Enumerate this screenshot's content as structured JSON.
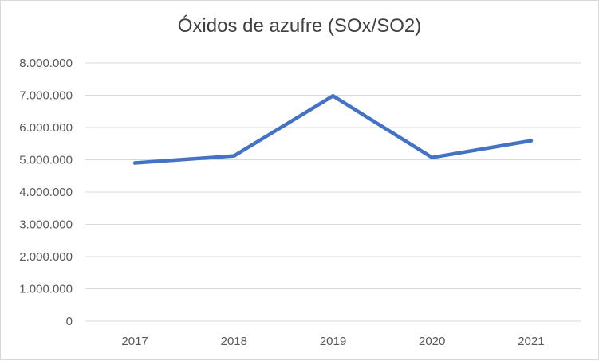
{
  "chart_data": {
    "type": "line",
    "title": "Óxidos de azufre (SOx/SO2)",
    "categories": [
      "2017",
      "2018",
      "2019",
      "2020",
      "2021"
    ],
    "series": [
      {
        "values": [
          4900000,
          5120000,
          6980000,
          5070000,
          5590000
        ]
      }
    ],
    "ylim": [
      0,
      8000000
    ],
    "yticks": [
      0,
      1000000,
      2000000,
      3000000,
      4000000,
      5000000,
      6000000,
      7000000,
      8000000
    ],
    "ytick_labels": [
      "0",
      "1.000.000",
      "2.000.000",
      "3.000.000",
      "4.000.000",
      "5.000.000",
      "6.000.000",
      "7.000.000",
      "8.000.000"
    ],
    "grid": true,
    "legend": "none",
    "colors": {
      "line": "#4472c4",
      "grid": "#d9d9d9",
      "text": "#595959"
    }
  }
}
